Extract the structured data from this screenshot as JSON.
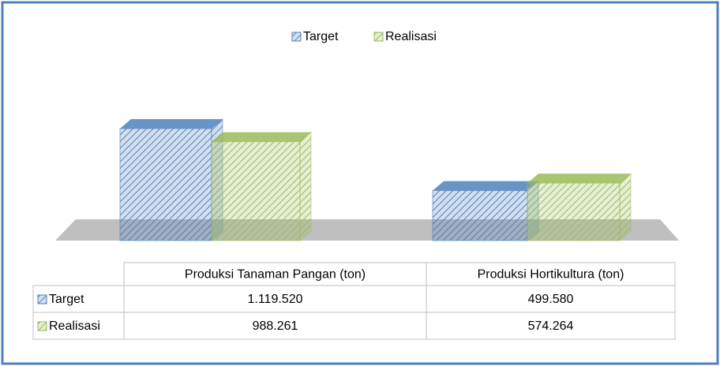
{
  "chart_data": {
    "type": "bar",
    "categories": [
      "Produksi Tanaman Pangan (ton)",
      "Produksi Hortikultura (ton)"
    ],
    "series": [
      {
        "name": "Target",
        "color": "#4f81bd",
        "values": [
          1119520,
          499580
        ],
        "value_labels": [
          "1.119.520",
          "499.580"
        ]
      },
      {
        "name": "Realisasi",
        "color": "#9bbb59",
        "values": [
          988261,
          574264
        ],
        "value_labels": [
          "988.261",
          "574.264"
        ]
      }
    ]
  }
}
